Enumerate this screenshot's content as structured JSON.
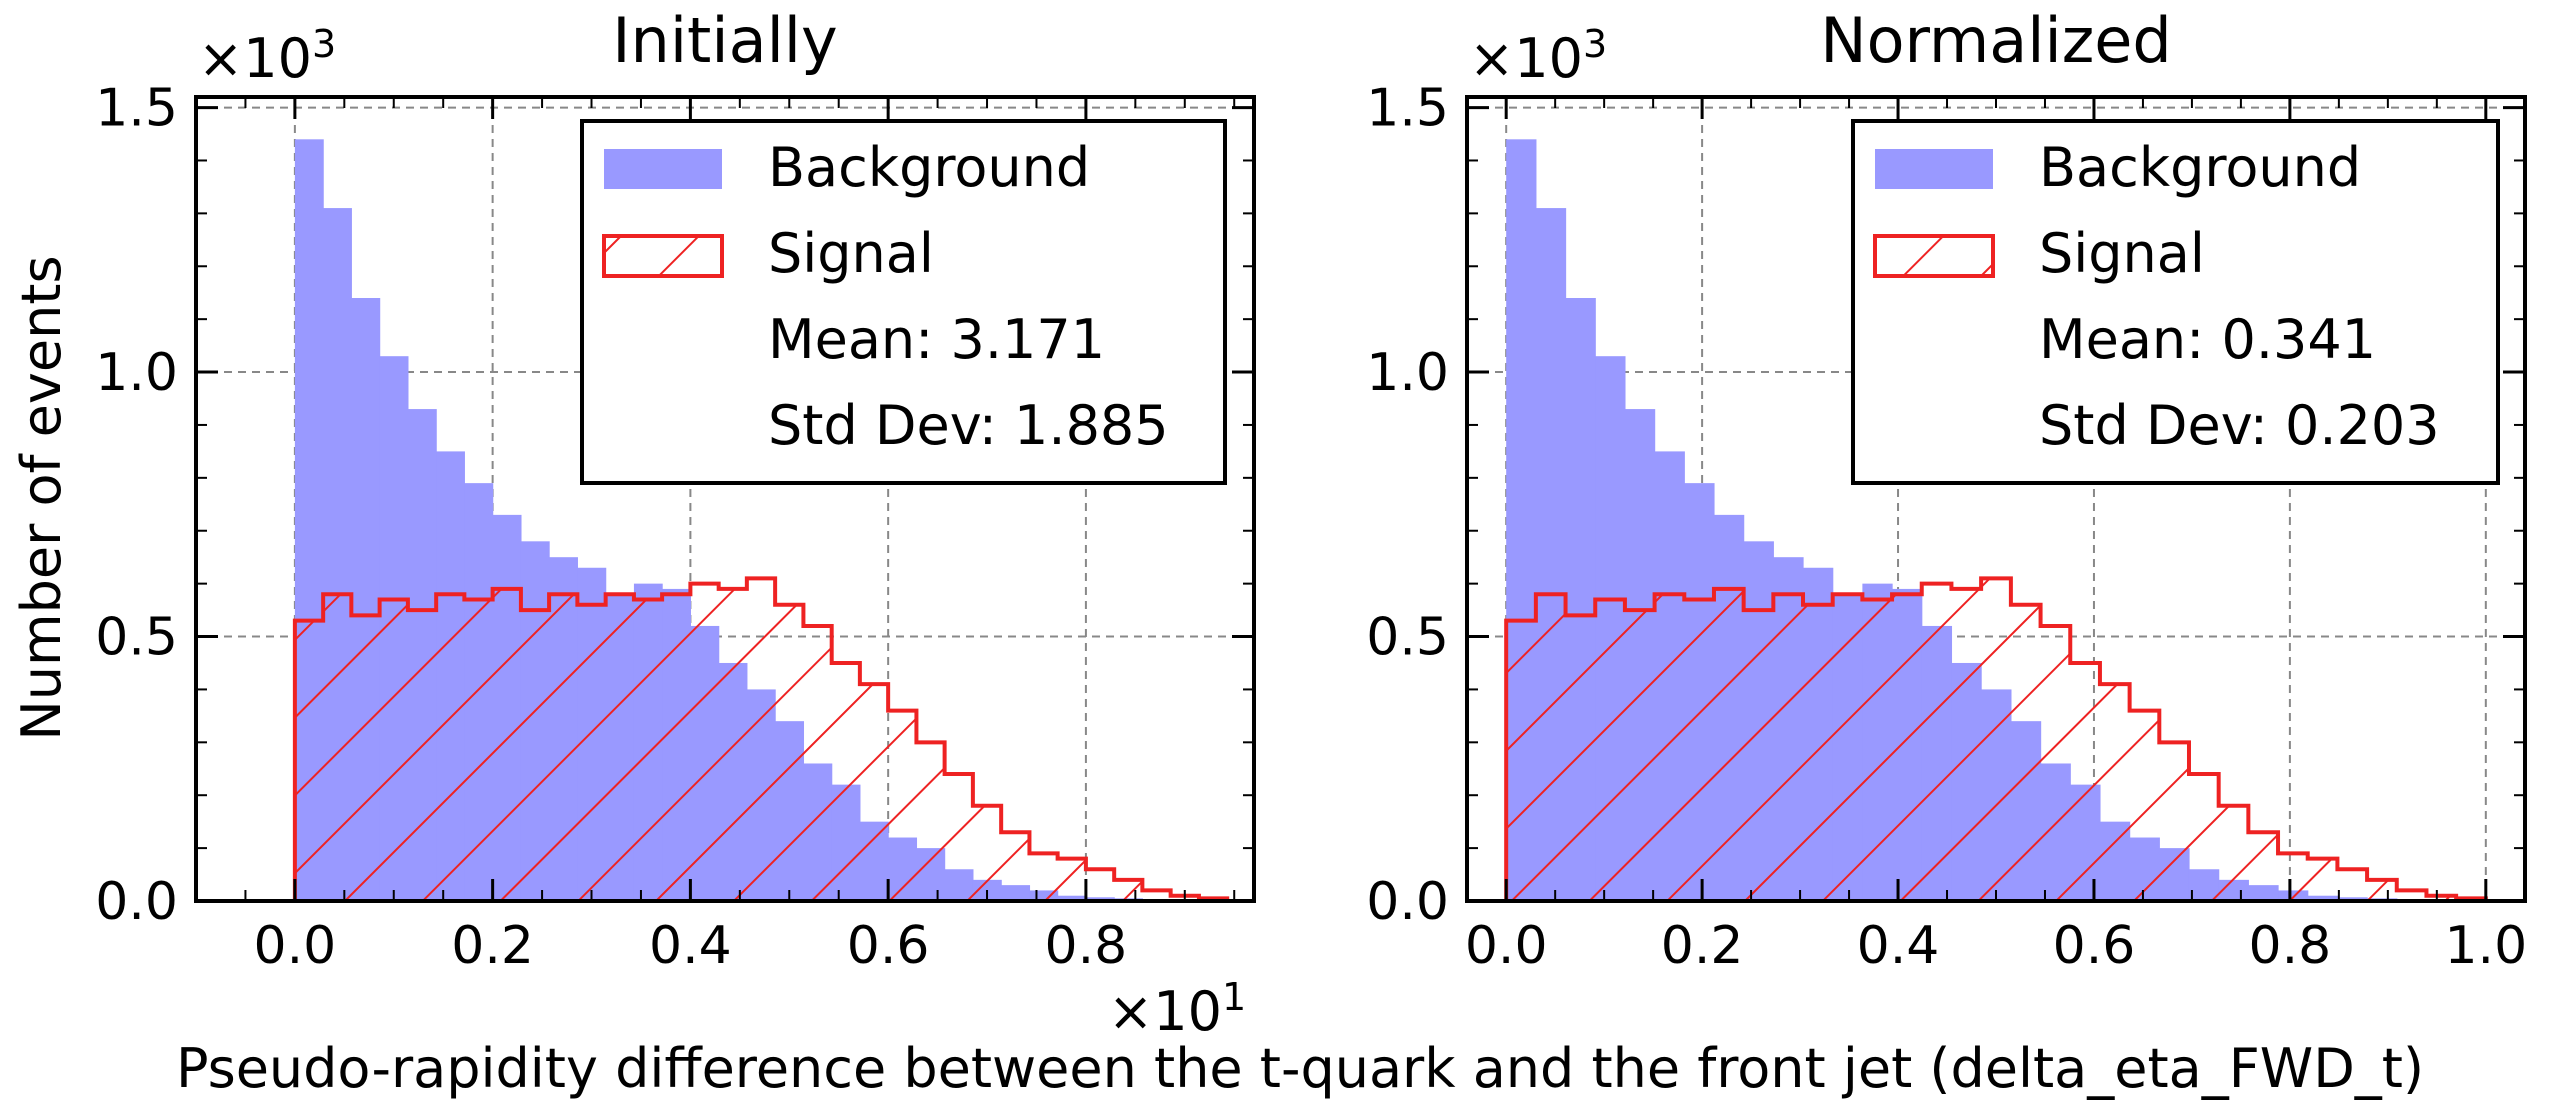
{
  "colors": {
    "background_fill": "#9999ff",
    "signal_stroke": "#ee2222",
    "grid": "#888888",
    "axes": "#000000"
  },
  "chart_data": {
    "type": "bar",
    "ylabel": "Number of events",
    "xlabel": "Pseudo-rapidity difference between the t-quark and the front jet (delta_eta_FWD_t)",
    "legend_position": "top-right",
    "grid": true,
    "panels": [
      {
        "title": "Initially",
        "y_multiplier": "×10",
        "y_multiplier_exp": "3",
        "x_multiplier": "×10",
        "x_multiplier_exp": "1",
        "xlim": [
          -0.1,
          0.97
        ],
        "ylim": [
          0,
          1.52
        ],
        "x_ticks": [
          0.0,
          0.2,
          0.4,
          0.6,
          0.8
        ],
        "x_tick_labels": [
          "0.0",
          "0.2",
          "0.4",
          "0.6",
          "0.8"
        ],
        "y_ticks": [
          0.0,
          0.5,
          1.0,
          1.5
        ],
        "y_tick_labels": [
          "0.0",
          "0.5",
          "1.0",
          "1.5"
        ],
        "bin_edges": [
          0.0,
          0.0286,
          0.0571,
          0.0857,
          0.1143,
          0.1429,
          0.1714,
          0.2,
          0.2286,
          0.2571,
          0.2857,
          0.3143,
          0.3429,
          0.3714,
          0.4,
          0.4286,
          0.4571,
          0.4857,
          0.5143,
          0.5429,
          0.5714,
          0.6,
          0.6286,
          0.6571,
          0.6857,
          0.7143,
          0.7429,
          0.7714,
          0.8,
          0.8286,
          0.8571,
          0.8857,
          0.9143,
          0.9429
        ],
        "series": [
          {
            "name": "Background",
            "style": "filled",
            "values": [
              1.44,
              1.31,
              1.14,
              1.03,
              0.93,
              0.85,
              0.79,
              0.73,
              0.68,
              0.65,
              0.63,
              0.58,
              0.6,
              0.59,
              0.52,
              0.45,
              0.4,
              0.34,
              0.26,
              0.22,
              0.15,
              0.12,
              0.1,
              0.06,
              0.04,
              0.03,
              0.02,
              0.01,
              0.007,
              0.005,
              0.003,
              0.002,
              0.001
            ]
          },
          {
            "name": "Signal",
            "style": "hatched-step",
            "values": [
              0.53,
              0.58,
              0.54,
              0.57,
              0.55,
              0.58,
              0.57,
              0.59,
              0.55,
              0.58,
              0.56,
              0.58,
              0.57,
              0.58,
              0.6,
              0.59,
              0.61,
              0.56,
              0.52,
              0.45,
              0.41,
              0.36,
              0.3,
              0.24,
              0.18,
              0.13,
              0.09,
              0.08,
              0.06,
              0.04,
              0.02,
              0.01,
              0.005
            ]
          }
        ],
        "legend": {
          "background_label": "Background",
          "signal_label": "Signal",
          "mean_text": "Mean: 3.171",
          "std_text": "Std Dev: 1.885"
        }
      },
      {
        "title": "Normalized",
        "y_multiplier": "×10",
        "y_multiplier_exp": "3",
        "xlim": [
          -0.04,
          1.04
        ],
        "ylim": [
          0,
          1.52
        ],
        "x_ticks": [
          0.0,
          0.2,
          0.4,
          0.6,
          0.8,
          1.0
        ],
        "x_tick_labels": [
          "0.0",
          "0.2",
          "0.4",
          "0.6",
          "0.8",
          "1.0"
        ],
        "y_ticks": [
          0.0,
          0.5,
          1.0,
          1.5
        ],
        "y_tick_labels": [
          "0.0",
          "0.5",
          "1.0",
          "1.5"
        ],
        "bin_edges": [
          0.0,
          0.0303,
          0.0606,
          0.0909,
          0.1212,
          0.1515,
          0.1818,
          0.2121,
          0.2424,
          0.2727,
          0.303,
          0.3333,
          0.3636,
          0.3939,
          0.4242,
          0.4545,
          0.4848,
          0.5152,
          0.5455,
          0.5758,
          0.6061,
          0.6364,
          0.6667,
          0.697,
          0.7273,
          0.7576,
          0.7879,
          0.8182,
          0.8485,
          0.8788,
          0.9091,
          0.9394,
          0.9697,
          1.0
        ],
        "series": [
          {
            "name": "Background",
            "style": "filled",
            "values": [
              1.44,
              1.31,
              1.14,
              1.03,
              0.93,
              0.85,
              0.79,
              0.73,
              0.68,
              0.65,
              0.63,
              0.58,
              0.6,
              0.59,
              0.52,
              0.45,
              0.4,
              0.34,
              0.26,
              0.22,
              0.15,
              0.12,
              0.1,
              0.06,
              0.04,
              0.03,
              0.02,
              0.01,
              0.007,
              0.005,
              0.003,
              0.002,
              0.001
            ]
          },
          {
            "name": "Signal",
            "style": "hatched-step",
            "values": [
              0.53,
              0.58,
              0.54,
              0.57,
              0.55,
              0.58,
              0.57,
              0.59,
              0.55,
              0.58,
              0.56,
              0.58,
              0.57,
              0.58,
              0.6,
              0.59,
              0.61,
              0.56,
              0.52,
              0.45,
              0.41,
              0.36,
              0.3,
              0.24,
              0.18,
              0.13,
              0.09,
              0.08,
              0.06,
              0.04,
              0.02,
              0.01,
              0.005
            ]
          }
        ],
        "legend": {
          "background_label": "Background",
          "signal_label": "Signal",
          "mean_text": "Mean: 0.341",
          "std_text": "Std Dev: 0.203"
        }
      }
    ]
  }
}
